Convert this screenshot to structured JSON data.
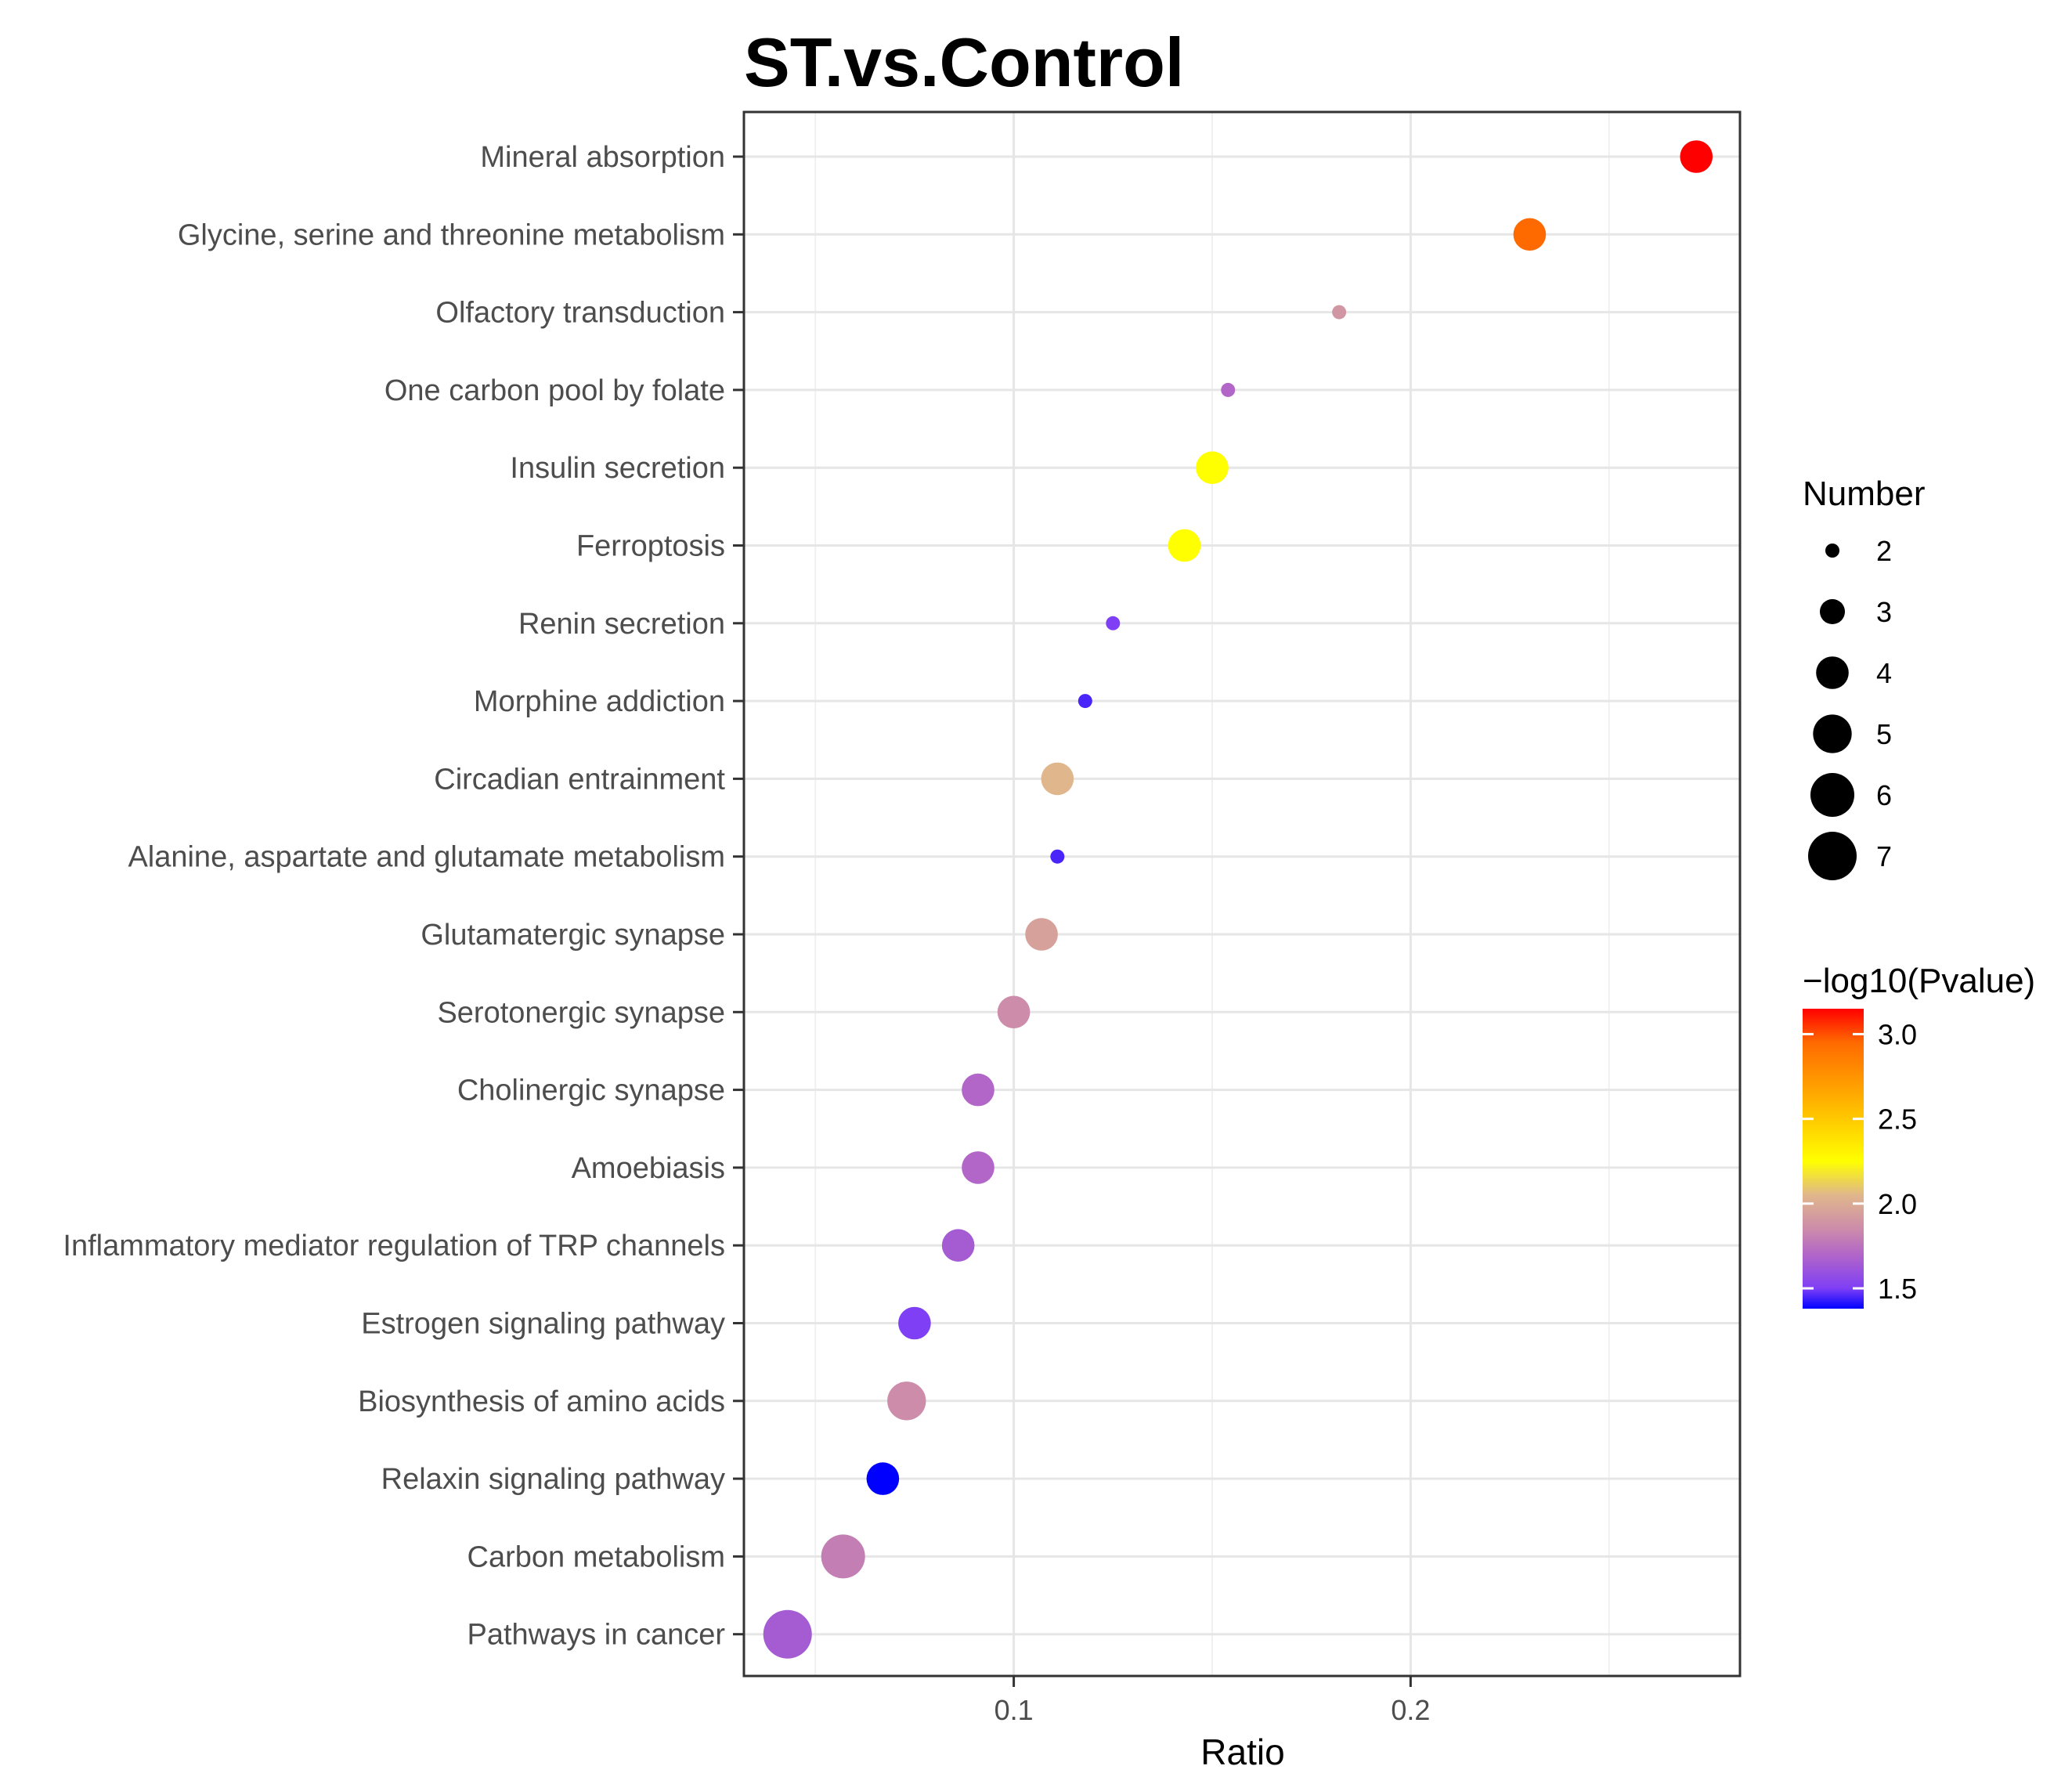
{
  "chart_data": {
    "type": "scatter",
    "title": "ST.vs.Control",
    "xlabel": "Ratio",
    "ylabel": "",
    "xlim": [
      0.032,
      0.283
    ],
    "xticks": [
      0.1,
      0.2
    ],
    "xtick_labels": [
      "0.1",
      "0.2"
    ],
    "grid": true,
    "categories": [
      "Mineral absorption",
      "Glycine, serine and threonine metabolism",
      "Olfactory transduction",
      "One carbon pool by folate",
      "Insulin secretion",
      "Ferroptosis",
      "Renin secretion",
      "Morphine addiction",
      "Circadian entrainment",
      "Alanine, aspartate and glutamate metabolism",
      "Glutamatergic synapse",
      "Serotonergic synapse",
      "Cholinergic synapse",
      "Amoebiasis",
      "Inflammatory mediator regulation of TRP channels",
      "Estrogen signaling pathway",
      "Biosynthesis of amino acids",
      "Relaxin signaling pathway",
      "Carbon metabolism",
      "Pathways in cancer"
    ],
    "points": [
      {
        "term": "Mineral absorption",
        "ratio": 0.272,
        "number": 4,
        "neglog10p": 3.15
      },
      {
        "term": "Glycine, serine and threonine metabolism",
        "ratio": 0.23,
        "number": 4,
        "neglog10p": 2.95
      },
      {
        "term": "Olfactory transduction",
        "ratio": 0.182,
        "number": 2,
        "neglog10p": 1.9
      },
      {
        "term": "One carbon pool by folate",
        "ratio": 0.154,
        "number": 2,
        "neglog10p": 1.7
      },
      {
        "term": "Insulin secretion",
        "ratio": 0.15,
        "number": 4,
        "neglog10p": 2.25
      },
      {
        "term": "Ferroptosis",
        "ratio": 0.143,
        "number": 4,
        "neglog10p": 2.25
      },
      {
        "term": "Renin secretion",
        "ratio": 0.125,
        "number": 2,
        "neglog10p": 1.5
      },
      {
        "term": "Morphine addiction",
        "ratio": 0.118,
        "number": 2,
        "neglog10p": 1.45
      },
      {
        "term": "Circadian entrainment",
        "ratio": 0.111,
        "number": 4,
        "neglog10p": 2.05
      },
      {
        "term": "Alanine, aspartate and glutamate metabolism",
        "ratio": 0.111,
        "number": 2,
        "neglog10p": 1.45
      },
      {
        "term": "Glutamatergic synapse",
        "ratio": 0.107,
        "number": 4,
        "neglog10p": 1.95
      },
      {
        "term": "Serotonergic synapse",
        "ratio": 0.1,
        "number": 4,
        "neglog10p": 1.85
      },
      {
        "term": "Cholinergic synapse",
        "ratio": 0.091,
        "number": 4,
        "neglog10p": 1.7
      },
      {
        "term": "Amoebiasis",
        "ratio": 0.091,
        "number": 4,
        "neglog10p": 1.7
      },
      {
        "term": "Inflammatory mediator regulation of TRP channels",
        "ratio": 0.086,
        "number": 4,
        "neglog10p": 1.65
      },
      {
        "term": "Estrogen signaling pathway",
        "ratio": 0.075,
        "number": 4,
        "neglog10p": 1.5
      },
      {
        "term": "Biosynthesis of amino acids",
        "ratio": 0.073,
        "number": 5,
        "neglog10p": 1.85
      },
      {
        "term": "Relaxin signaling pathway",
        "ratio": 0.067,
        "number": 4,
        "neglog10p": 1.38
      },
      {
        "term": "Carbon metabolism",
        "ratio": 0.057,
        "number": 6,
        "neglog10p": 1.8
      },
      {
        "term": "Pathways in cancer",
        "ratio": 0.043,
        "number": 7,
        "neglog10p": 1.65
      }
    ],
    "size_legend": {
      "title": "Number",
      "values": [
        2,
        3,
        4,
        5,
        6,
        7
      ],
      "labels": [
        "2",
        "3",
        "4",
        "5",
        "6",
        "7"
      ]
    },
    "color_legend": {
      "title": "−log10(Pvalue)",
      "range": [
        1.38,
        3.15
      ],
      "ticks": [
        1.5,
        2.0,
        2.5,
        3.0
      ],
      "tick_labels": [
        "1.5",
        "2.0",
        "2.5",
        "3.0"
      ],
      "stops": [
        {
          "value": 1.38,
          "color": "#0000ff"
        },
        {
          "value": 1.5,
          "color": "#7f3ff5"
        },
        {
          "value": 1.7,
          "color": "#b266c8"
        },
        {
          "value": 1.85,
          "color": "#cc8caa"
        },
        {
          "value": 2.05,
          "color": "#e0b68c"
        },
        {
          "value": 2.25,
          "color": "#ffff00"
        },
        {
          "value": 2.6,
          "color": "#ffb300"
        },
        {
          "value": 2.95,
          "color": "#ff6a00"
        },
        {
          "value": 3.15,
          "color": "#ff0000"
        }
      ]
    }
  }
}
